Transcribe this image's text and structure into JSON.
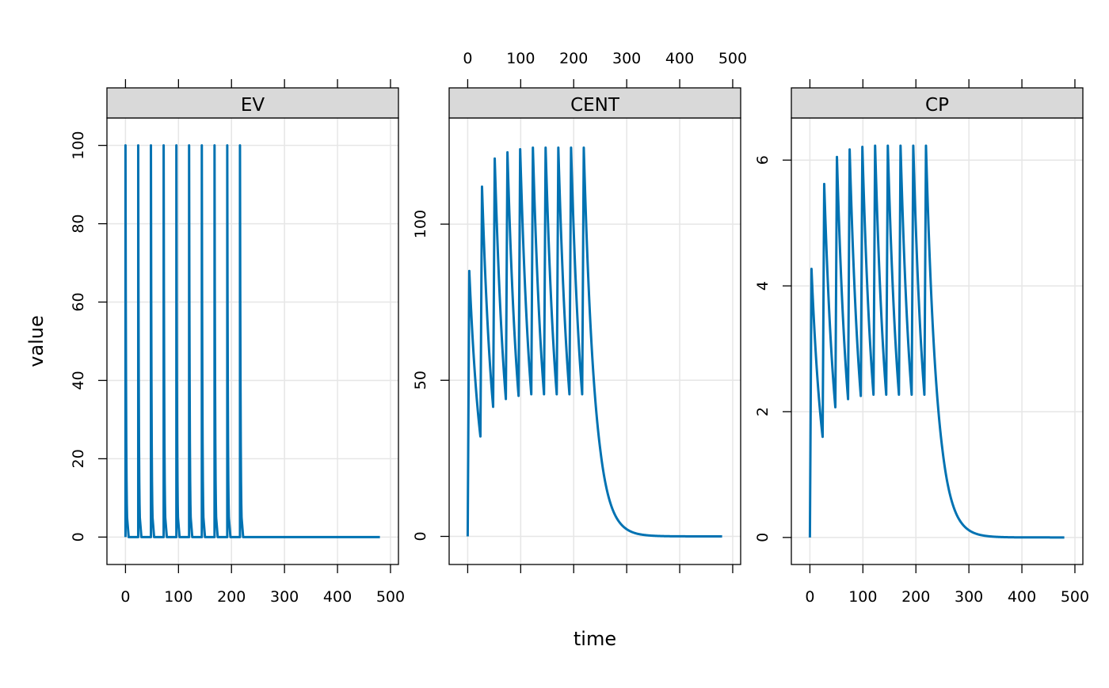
{
  "chart_data": [
    {
      "type": "line",
      "panel": "EV",
      "xlim": [
        -35,
        515
      ],
      "ylim": [
        -7,
        107
      ],
      "xticks": [
        0,
        100,
        200,
        300,
        400,
        500
      ],
      "yticks": [
        0,
        20,
        40,
        60,
        80,
        100
      ],
      "xtick_labels_side": "bottom",
      "grid": true,
      "points": [
        [
          0,
          0
        ],
        [
          0,
          100
        ],
        [
          1,
          40
        ],
        [
          3,
          5
        ],
        [
          6,
          0
        ],
        [
          24,
          0
        ],
        [
          24,
          100
        ],
        [
          25,
          40
        ],
        [
          27,
          5
        ],
        [
          30,
          0
        ],
        [
          48,
          0
        ],
        [
          48,
          100
        ],
        [
          49,
          40
        ],
        [
          51,
          5
        ],
        [
          54,
          0
        ],
        [
          72,
          0
        ],
        [
          72,
          100
        ],
        [
          73,
          40
        ],
        [
          75,
          5
        ],
        [
          78,
          0
        ],
        [
          96,
          0
        ],
        [
          96,
          100
        ],
        [
          97,
          40
        ],
        [
          99,
          5
        ],
        [
          102,
          0
        ],
        [
          120,
          0
        ],
        [
          120,
          100
        ],
        [
          121,
          40
        ],
        [
          123,
          5
        ],
        [
          126,
          0
        ],
        [
          144,
          0
        ],
        [
          144,
          100
        ],
        [
          145,
          40
        ],
        [
          147,
          5
        ],
        [
          150,
          0
        ],
        [
          168,
          0
        ],
        [
          168,
          100
        ],
        [
          169,
          40
        ],
        [
          171,
          5
        ],
        [
          174,
          0
        ],
        [
          192,
          0
        ],
        [
          192,
          100
        ],
        [
          193,
          40
        ],
        [
          195,
          5
        ],
        [
          198,
          0
        ],
        [
          216,
          0
        ],
        [
          216,
          100
        ],
        [
          217,
          40
        ],
        [
          219,
          5
        ],
        [
          222,
          0
        ],
        [
          480,
          0
        ]
      ]
    },
    {
      "type": "line",
      "panel": "CENT",
      "xlim": [
        -35,
        515
      ],
      "ylim": [
        -9,
        134
      ],
      "xticks": [
        0,
        100,
        200,
        300,
        400,
        500
      ],
      "yticks": [
        0,
        50,
        100
      ],
      "xtick_labels_side": "top",
      "grid": true,
      "points": [
        [
          0,
          0
        ],
        [
          3,
          85
        ],
        [
          24,
          32
        ],
        [
          27,
          112
        ],
        [
          48,
          41.5
        ],
        [
          51,
          121
        ],
        [
          72,
          44
        ],
        [
          75,
          123
        ],
        [
          96,
          45
        ],
        [
          99,
          124
        ],
        [
          120,
          45.5
        ],
        [
          123,
          124.5
        ],
        [
          144,
          45.5
        ],
        [
          147,
          124.5
        ],
        [
          168,
          45.5
        ],
        [
          171,
          124.5
        ],
        [
          192,
          45.5
        ],
        [
          195,
          124.5
        ],
        [
          216,
          45.5
        ],
        [
          219,
          124.5
        ],
        [
          250,
          28
        ],
        [
          280,
          6.2
        ],
        [
          320,
          0.85
        ],
        [
          400,
          0.02
        ],
        [
          480,
          0
        ]
      ]
    },
    {
      "type": "line",
      "panel": "CP",
      "xlim": [
        -35,
        515
      ],
      "ylim": [
        -0.43,
        6.67
      ],
      "xticks": [
        0,
        100,
        200,
        300,
        400,
        500
      ],
      "yticks": [
        0,
        2,
        4,
        6
      ],
      "xtick_labels_side": "bottom",
      "grid": true,
      "points": [
        [
          0,
          0
        ],
        [
          3,
          4.27
        ],
        [
          24,
          1.6
        ],
        [
          27,
          5.62
        ],
        [
          48,
          2.07
        ],
        [
          51,
          6.05
        ],
        [
          72,
          2.2
        ],
        [
          75,
          6.17
        ],
        [
          96,
          2.25
        ],
        [
          99,
          6.21
        ],
        [
          120,
          2.27
        ],
        [
          123,
          6.23
        ],
        [
          144,
          2.27
        ],
        [
          147,
          6.23
        ],
        [
          168,
          2.27
        ],
        [
          171,
          6.23
        ],
        [
          192,
          2.27
        ],
        [
          195,
          6.23
        ],
        [
          216,
          2.27
        ],
        [
          219,
          6.23
        ],
        [
          250,
          1.4
        ],
        [
          280,
          0.31
        ],
        [
          320,
          0.043
        ],
        [
          400,
          0.001
        ],
        [
          480,
          0
        ]
      ]
    }
  ],
  "xlabel": "time",
  "ylabel": "value",
  "colors": {
    "line": "#0072B2",
    "strip": "#D9D9D9",
    "grid": "#E6E6E6"
  }
}
